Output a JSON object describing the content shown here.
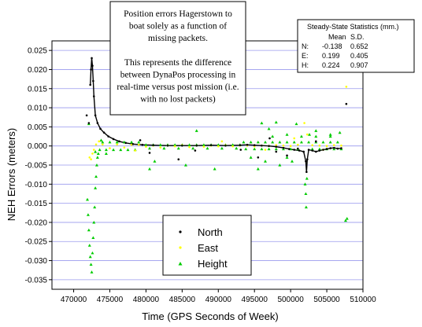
{
  "chart_data": {
    "type": "scatter",
    "xlabel": "Time (GPS Seconds of Week)",
    "ylabel": "NEH Errors (meters)",
    "xlim": [
      467000,
      510000
    ],
    "ylim": [
      -0.0375,
      0.0275
    ],
    "x_ticks": [
      "470000",
      "475000",
      "480000",
      "485000",
      "490000",
      "495000",
      "500000",
      "505000",
      "510000"
    ],
    "y_ticks": [
      "0.025",
      "0.020",
      "0.015",
      "0.010",
      "0.005",
      "0.000",
      "-0.005",
      "-0.010",
      "-0.015",
      "-0.020",
      "-0.025",
      "-0.030",
      "-0.035"
    ],
    "grid": "horizontal",
    "legend_position": "bottom-center",
    "series": [
      {
        "name": "North",
        "color": "#000000",
        "marker": "dot",
        "points": [
          [
            472300,
            0.016
          ],
          [
            472400,
            0.02
          ],
          [
            472500,
            0.023
          ],
          [
            472600,
            0.021
          ],
          [
            472700,
            0.017
          ],
          [
            472800,
            0.013
          ],
          [
            473000,
            0.008
          ],
          [
            473300,
            0.006
          ],
          [
            473700,
            0.0045
          ],
          [
            474200,
            0.0035
          ],
          [
            474800,
            0.0025
          ],
          [
            475500,
            0.0018
          ],
          [
            476300,
            0.0012
          ],
          [
            477200,
            0.0008
          ],
          [
            478200,
            0.0005
          ],
          [
            479500,
            0.0003
          ],
          [
            481000,
            0.0002
          ],
          [
            483000,
            0.0001
          ],
          [
            485000,
            0.0001
          ],
          [
            487000,
            0.0001
          ],
          [
            489000,
            0.0002
          ],
          [
            491000,
            0.0001
          ],
          [
            493000,
            0.0002
          ],
          [
            494000,
            0.0003
          ],
          [
            495000,
            0.0002
          ],
          [
            496000,
            0.0001
          ],
          [
            497000,
            0.0
          ],
          [
            498000,
            -0.0002
          ],
          [
            499000,
            -0.0005
          ],
          [
            499800,
            -0.0008
          ],
          [
            500500,
            -0.001
          ],
          [
            501200,
            -0.0012
          ],
          [
            501800,
            -0.0015
          ],
          [
            502100,
            -0.004
          ],
          [
            502200,
            -0.0068
          ],
          [
            502300,
            -0.0035
          ],
          [
            502500,
            -0.001
          ],
          [
            503000,
            -0.0012
          ],
          [
            503500,
            -0.0015
          ],
          [
            504000,
            -0.0012
          ],
          [
            504500,
            -0.001
          ],
          [
            505000,
            -0.0008
          ],
          [
            505500,
            -0.0006
          ],
          [
            506000,
            -0.0005
          ],
          [
            506500,
            -0.0007
          ],
          [
            507000,
            -0.0006
          ],
          [
            471800,
            0.008
          ],
          [
            472100,
            0.006
          ],
          [
            479200,
            0.0015
          ],
          [
            480500,
            -0.0018
          ],
          [
            484500,
            -0.0035
          ],
          [
            486800,
            -0.0012
          ],
          [
            493100,
            -0.001
          ],
          [
            495500,
            -0.003
          ],
          [
            497100,
            0.002
          ],
          [
            498000,
            -0.0015
          ],
          [
            499500,
            -0.0025
          ],
          [
            501000,
            -0.0007
          ],
          [
            503500,
            0.0012
          ],
          [
            507700,
            0.011
          ]
        ]
      },
      {
        "name": "East",
        "color": "#ffff00",
        "marker": "dot",
        "points": [
          [
            472200,
            -0.003
          ],
          [
            472400,
            -0.0035
          ],
          [
            472600,
            -0.002
          ],
          [
            472800,
            -0.001
          ],
          [
            473100,
            0.0004
          ],
          [
            474000,
            0.0004
          ],
          [
            475000,
            -0.0006
          ],
          [
            476000,
            0.0004
          ],
          [
            477000,
            -0.0004
          ],
          [
            478000,
            0.0003
          ],
          [
            479000,
            0.0003
          ],
          [
            480000,
            -0.0002
          ],
          [
            481000,
            0.0001
          ],
          [
            482000,
            -0.0004
          ],
          [
            483000,
            0.0001
          ],
          [
            484000,
            -0.0001
          ],
          [
            485000,
            0.0002
          ],
          [
            486000,
            -0.0003
          ],
          [
            487000,
            0.0001
          ],
          [
            488000,
            -0.0002
          ],
          [
            489000,
            0.0001
          ],
          [
            490000,
            -0.0001
          ],
          [
            491000,
            0.0002
          ],
          [
            492000,
            -0.0001
          ],
          [
            493000,
            0.0001
          ],
          [
            494000,
            0.0001
          ],
          [
            495000,
            -0.0001
          ],
          [
            496000,
            0.0001
          ],
          [
            497000,
            0.0
          ],
          [
            498000,
            0.0002
          ],
          [
            499000,
            0.0001
          ],
          [
            500000,
            0.0
          ],
          [
            501000,
            0.0003
          ],
          [
            501900,
            0.006
          ],
          [
            502300,
            0.003
          ],
          [
            503000,
            0.0002
          ],
          [
            504000,
            0.0001
          ],
          [
            505000,
            0.0
          ],
          [
            506000,
            0.0002
          ],
          [
            507000,
            0.0001
          ],
          [
            507700,
            0.0155
          ],
          [
            473500,
            0.0012
          ],
          [
            478500,
            -0.0012
          ],
          [
            490500,
            0.0012
          ],
          [
            496500,
            -0.001
          ],
          [
            500500,
            0.002
          ],
          [
            504500,
            -0.001
          ]
        ]
      },
      {
        "name": "Height",
        "color": "#00cc00",
        "marker": "triangle",
        "points": [
          [
            471900,
            -0.014
          ],
          [
            472000,
            -0.018
          ],
          [
            472100,
            -0.022
          ],
          [
            472200,
            -0.026
          ],
          [
            472300,
            -0.029
          ],
          [
            472400,
            -0.031
          ],
          [
            472500,
            -0.033
          ],
          [
            472600,
            -0.028
          ],
          [
            472700,
            -0.024
          ],
          [
            472800,
            -0.02
          ],
          [
            472900,
            -0.016
          ],
          [
            473000,
            -0.011
          ],
          [
            473100,
            -0.008
          ],
          [
            473200,
            -0.005
          ],
          [
            473300,
            -0.003
          ],
          [
            473400,
            -0.002
          ],
          [
            473000,
            -0.0015
          ],
          [
            473600,
            -0.001
          ],
          [
            474000,
            0.001
          ],
          [
            475000,
            0.001
          ],
          [
            476000,
            0.001
          ],
          [
            477000,
            0.001
          ],
          [
            478000,
            0.001
          ],
          [
            479000,
            0.001
          ],
          [
            474500,
            -0.001
          ],
          [
            475500,
            -0.001
          ],
          [
            476500,
            -0.001
          ],
          [
            477500,
            -0.001
          ],
          [
            478500,
            -0.001
          ],
          [
            480000,
            0.0003
          ],
          [
            481000,
            0.0003
          ],
          [
            482000,
            0.0003
          ],
          [
            483000,
            0.0003
          ],
          [
            484000,
            0.0003
          ],
          [
            485000,
            0.0003
          ],
          [
            486000,
            0.0003
          ],
          [
            487000,
            0.0003
          ],
          [
            488000,
            0.0003
          ],
          [
            489000,
            0.0003
          ],
          [
            490000,
            0.0003
          ],
          [
            491000,
            0.0003
          ],
          [
            492000,
            0.0003
          ],
          [
            493000,
            0.0003
          ],
          [
            480500,
            -0.0006
          ],
          [
            482500,
            -0.0006
          ],
          [
            484500,
            -0.0006
          ],
          [
            486500,
            -0.0006
          ],
          [
            488500,
            -0.0006
          ],
          [
            490500,
            -0.0006
          ],
          [
            492500,
            -0.0006
          ],
          [
            493500,
            0.001
          ],
          [
            494500,
            0.001
          ],
          [
            495500,
            0.001
          ],
          [
            496500,
            0.001
          ],
          [
            497500,
            0.001
          ],
          [
            498500,
            0.001
          ],
          [
            499500,
            0.001
          ],
          [
            500500,
            0.001
          ],
          [
            501500,
            0.001
          ],
          [
            502500,
            0.001
          ],
          [
            503500,
            0.001
          ],
          [
            504500,
            0.001
          ],
          [
            505500,
            0.001
          ],
          [
            506500,
            0.001
          ],
          [
            493800,
            -0.0008
          ],
          [
            495000,
            -0.0008
          ],
          [
            496000,
            -0.0008
          ],
          [
            497000,
            -0.0008
          ],
          [
            498000,
            -0.0008
          ],
          [
            499000,
            -0.0008
          ],
          [
            500000,
            -0.0008
          ],
          [
            501000,
            -0.0008
          ],
          [
            503000,
            -0.0008
          ],
          [
            504000,
            -0.0008
          ],
          [
            505000,
            -0.0008
          ],
          [
            506000,
            -0.0008
          ],
          [
            507000,
            -0.0008
          ],
          [
            497500,
            0.0025
          ],
          [
            499500,
            0.003
          ],
          [
            501500,
            0.0025
          ],
          [
            503500,
            0.0025
          ],
          [
            505500,
            0.0025
          ],
          [
            502000,
            -0.01
          ],
          [
            502100,
            -0.0125
          ],
          [
            502150,
            -0.016
          ],
          [
            502250,
            -0.0085
          ],
          [
            496000,
            0.006
          ],
          [
            498000,
            0.0062
          ],
          [
            500800,
            0.0058
          ],
          [
            493300,
            0.0085
          ],
          [
            497000,
            0.0045
          ],
          [
            480500,
            -0.006
          ],
          [
            485500,
            -0.005
          ],
          [
            489500,
            -0.006
          ],
          [
            495500,
            -0.006
          ],
          [
            494500,
            -0.003
          ],
          [
            496500,
            -0.004
          ],
          [
            499500,
            -0.003
          ],
          [
            474500,
            -0.002
          ],
          [
            487000,
            0.004
          ],
          [
            503500,
            0.004
          ],
          [
            505500,
            0.003
          ],
          [
            507600,
            -0.0195
          ],
          [
            507800,
            -0.019
          ],
          [
            472100,
            0.0058
          ],
          [
            481200,
            -0.004
          ],
          [
            498500,
            -0.005
          ],
          [
            500200,
            -0.004
          ],
          [
            502600,
            0.003
          ],
          [
            473800,
            0.0015
          ],
          [
            506800,
            0.0035
          ]
        ]
      }
    ],
    "annotation_lines": [
      "Position errors Hagerstown to",
      "boat solely as a function of",
      "missing packets.",
      "",
      "This represents the difference",
      "between DynaPos processing in",
      "real-time versus post mission (i.e.",
      "with no lost packets)"
    ],
    "stats_table": {
      "title": "Steady-State Statistics (mm.)",
      "headers": [
        "",
        "Mean",
        "S.D."
      ],
      "rows": [
        [
          "N:",
          "-0.138",
          "0.652"
        ],
        [
          "E:",
          "0.199",
          "0.405"
        ],
        [
          "H:",
          "0.224",
          "0.907"
        ]
      ]
    }
  }
}
